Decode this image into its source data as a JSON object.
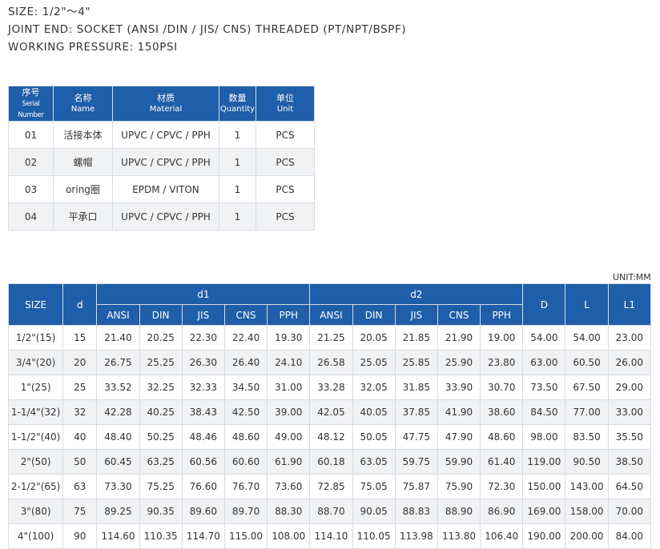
{
  "specs": {
    "size": "SIZE: 1/2\"～4\"",
    "joint_end": "JOINT END: SOCKET (ANSI /DIN / JIS/ CNS)   THREADED (PT/NPT/BSPF)",
    "working_pressure": "WORKING  PRESSURE: 150PSI"
  },
  "parts_table": {
    "headers": [
      {
        "cn": "序号",
        "en": "Serial Number"
      },
      {
        "cn": "名称",
        "en": "Name"
      },
      {
        "cn": "材质",
        "en": "Material"
      },
      {
        "cn": "数量",
        "en": "Quantity"
      },
      {
        "cn": "单位",
        "en": "Unit"
      }
    ],
    "rows": [
      [
        "01",
        "活接本体",
        "UPVC / CPVC / PPH",
        "1",
        "PCS"
      ],
      [
        "02",
        "螺帽",
        "UPVC / CPVC / PPH",
        "1",
        "PCS"
      ],
      [
        "03",
        "oring圈",
        "EPDM / VITON",
        "1",
        "PCS"
      ],
      [
        "04",
        "平承口",
        "UPVC / CPVC / PPH",
        "1",
        "PCS"
      ]
    ]
  },
  "unit_label": "UNIT:MM",
  "size_table": {
    "headers": {
      "size": "SIZE",
      "d": "d",
      "d1": "d1",
      "d2": "d2",
      "D": "D",
      "L": "L",
      "L1": "L1",
      "standards": [
        "ANSI",
        "DIN",
        "JIS",
        "CNS",
        "PPH"
      ]
    },
    "rows": [
      [
        "1/2\"(15)",
        "15",
        "21.40",
        "20.25",
        "22.30",
        "22.40",
        "19.30",
        "21.25",
        "20.05",
        "21.85",
        "21.90",
        "19.00",
        "54.00",
        "54.00",
        "23.00"
      ],
      [
        "3/4\"(20)",
        "20",
        "26.75",
        "25.25",
        "26.30",
        "26.40",
        "24.10",
        "26.58",
        "25.05",
        "25.85",
        "25.90",
        "23.80",
        "63.00",
        "60.50",
        "26.00"
      ],
      [
        "1\"(25)",
        "25",
        "33.52",
        "32.25",
        "32.33",
        "34.50",
        "31.00",
        "33.28",
        "32.05",
        "31.85",
        "33.90",
        "30.70",
        "73.50",
        "67.50",
        "29.00"
      ],
      [
        "1-1/4\"(32)",
        "32",
        "42.28",
        "40.25",
        "38.43",
        "42.50",
        "39.00",
        "42.05",
        "40.05",
        "37.85",
        "41.90",
        "38.60",
        "84.50",
        "77.00",
        "33.00"
      ],
      [
        "1-1/2\"(40)",
        "40",
        "48.40",
        "50.25",
        "48.46",
        "48.60",
        "49.00",
        "48.12",
        "50.05",
        "47.75",
        "47.90",
        "48.60",
        "98.00",
        "83.50",
        "35.50"
      ],
      [
        "2\"(50)",
        "50",
        "60.45",
        "63.25",
        "60.56",
        "60.60",
        "61.90",
        "60.18",
        "63.05",
        "59.75",
        "59.90",
        "61.40",
        "119.00",
        "90.50",
        "38.50"
      ],
      [
        "2-1/2\"(65)",
        "63",
        "73.30",
        "75.25",
        "76.60",
        "76.70",
        "73.60",
        "72.85",
        "75.05",
        "75.87",
        "75.90",
        "72.30",
        "150.00",
        "143.00",
        "64.50"
      ],
      [
        "3\"(80)",
        "75",
        "89.25",
        "90.35",
        "89.60",
        "89.70",
        "88.30",
        "88.70",
        "90.05",
        "88.83",
        "88.90",
        "86.90",
        "169.00",
        "158.00",
        "70.00"
      ],
      [
        "4\"(100)",
        "90",
        "114.60",
        "110.35",
        "114.70",
        "115.00",
        "108.00",
        "114.10",
        "110.05",
        "113.98",
        "113.80",
        "106.40",
        "190.00",
        "200.00",
        "84.00"
      ]
    ]
  }
}
